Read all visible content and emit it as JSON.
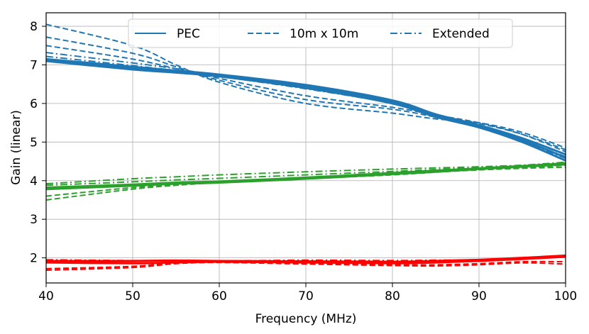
{
  "chart_data": {
    "type": "line",
    "title": "",
    "xlabel": "Frequency (MHz)",
    "ylabel": "Gain (linear)",
    "xlim": [
      40,
      100
    ],
    "ylim": [
      1.35,
      8.35
    ],
    "xticks": [
      40,
      50,
      60,
      70,
      80,
      90,
      100
    ],
    "yticks": [
      2,
      3,
      4,
      5,
      6,
      7,
      8
    ],
    "grid": true,
    "legend": {
      "placement": "top-center",
      "entries": [
        {
          "label": "PEC",
          "style": "solid"
        },
        {
          "label": "10m x 10m",
          "style": "dashed"
        },
        {
          "label": "Extended",
          "style": "dashdot"
        }
      ]
    },
    "colors": {
      "blue": "#1f77b4",
      "green": "#2ca02c",
      "red": "#ff0000"
    },
    "x": [
      40,
      50,
      55,
      60,
      70,
      80,
      85,
      90,
      95,
      100
    ],
    "series": [
      {
        "name": "PEC (blue) a",
        "color": "blue",
        "style": "solid",
        "width": 3,
        "values": [
          7.12,
          6.9,
          6.82,
          6.72,
          6.45,
          6.05,
          5.7,
          5.4,
          5.05,
          4.6
        ]
      },
      {
        "name": "PEC (blue) b",
        "color": "blue",
        "style": "solid",
        "width": 3,
        "values": [
          7.1,
          6.88,
          6.8,
          6.7,
          6.4,
          6.0,
          5.65,
          5.38,
          5.0,
          4.52
        ]
      },
      {
        "name": "PEC (blue) c",
        "color": "blue",
        "style": "solid",
        "width": 3,
        "values": [
          7.15,
          6.95,
          6.85,
          6.75,
          6.48,
          6.08,
          5.72,
          5.44,
          5.1,
          4.68
        ]
      },
      {
        "name": "10m x 10m (blue) a",
        "color": "blue",
        "style": "dashed",
        "width": 2,
        "values": [
          8.05,
          7.5,
          7.0,
          6.55,
          6.0,
          5.75,
          5.6,
          5.5,
          5.25,
          4.85
        ]
      },
      {
        "name": "10m x 10m (blue) b",
        "color": "blue",
        "style": "dashed",
        "width": 2,
        "values": [
          7.72,
          7.3,
          6.95,
          6.6,
          6.1,
          5.85,
          5.65,
          5.48,
          5.2,
          4.8
        ]
      },
      {
        "name": "10m x 10m (blue) c",
        "color": "blue",
        "style": "dashed",
        "width": 2,
        "values": [
          7.5,
          7.15,
          6.9,
          6.65,
          6.2,
          5.9,
          5.7,
          5.5,
          5.2,
          4.75
        ]
      },
      {
        "name": "Extended (blue) a",
        "color": "blue",
        "style": "dashdot",
        "width": 2,
        "values": [
          7.32,
          7.05,
          6.9,
          6.72,
          6.42,
          6.02,
          5.68,
          5.4,
          5.05,
          4.62
        ]
      },
      {
        "name": "Extended (blue) b",
        "color": "blue",
        "style": "dashdot",
        "width": 2,
        "values": [
          7.22,
          6.98,
          6.85,
          6.7,
          6.38,
          6.0,
          5.66,
          5.38,
          5.02,
          4.58
        ]
      },
      {
        "name": "PEC (green) a",
        "color": "green",
        "style": "solid",
        "width": 3,
        "values": [
          3.82,
          3.9,
          3.95,
          3.98,
          4.08,
          4.2,
          4.26,
          4.32,
          4.38,
          4.45
        ]
      },
      {
        "name": "PEC (green) b",
        "color": "green",
        "style": "solid",
        "width": 3,
        "values": [
          3.78,
          3.87,
          3.92,
          3.95,
          4.05,
          4.17,
          4.23,
          4.3,
          4.36,
          4.42
        ]
      },
      {
        "name": "10m x 10m (green) a",
        "color": "green",
        "style": "dashed",
        "width": 2,
        "values": [
          3.5,
          3.78,
          3.88,
          3.95,
          4.05,
          4.15,
          4.22,
          4.28,
          4.33,
          4.4
        ]
      },
      {
        "name": "10m x 10m (green) b",
        "color": "green",
        "style": "dashed",
        "width": 2,
        "values": [
          3.6,
          3.82,
          3.9,
          3.97,
          4.07,
          4.17,
          4.23,
          4.28,
          4.32,
          4.35
        ]
      },
      {
        "name": "Extended (green) a",
        "color": "green",
        "style": "dashdot",
        "width": 2,
        "values": [
          3.92,
          4.05,
          4.1,
          4.15,
          4.23,
          4.3,
          4.33,
          4.36,
          4.4,
          4.45
        ]
      },
      {
        "name": "Extended (green) b",
        "color": "green",
        "style": "dashdot",
        "width": 2,
        "values": [
          3.88,
          3.97,
          4.02,
          4.06,
          4.15,
          4.24,
          4.29,
          4.34,
          4.4,
          4.48
        ]
      },
      {
        "name": "PEC (red) a",
        "color": "red",
        "style": "solid",
        "width": 3,
        "values": [
          1.92,
          1.92,
          1.93,
          1.92,
          1.91,
          1.9,
          1.92,
          1.95,
          2.0,
          2.06
        ]
      },
      {
        "name": "PEC (red) b",
        "color": "red",
        "style": "solid",
        "width": 3,
        "values": [
          1.88,
          1.86,
          1.88,
          1.9,
          1.88,
          1.86,
          1.88,
          1.92,
          1.97,
          2.03
        ]
      },
      {
        "name": "10m x 10m (red) a",
        "color": "red",
        "style": "dashed",
        "width": 2,
        "values": [
          1.68,
          1.75,
          1.85,
          1.88,
          1.84,
          1.8,
          1.79,
          1.82,
          1.87,
          1.84
        ]
      },
      {
        "name": "10m x 10m (red) b",
        "color": "red",
        "style": "dashed",
        "width": 2,
        "values": [
          1.72,
          1.78,
          1.88,
          1.9,
          1.86,
          1.82,
          1.82,
          1.85,
          1.9,
          1.9
        ]
      },
      {
        "name": "Extended (red) a",
        "color": "red",
        "style": "dashdot",
        "width": 2,
        "values": [
          1.95,
          1.93,
          1.93,
          1.92,
          1.94,
          1.93,
          1.94,
          1.95,
          1.98,
          2.02
        ]
      }
    ]
  }
}
